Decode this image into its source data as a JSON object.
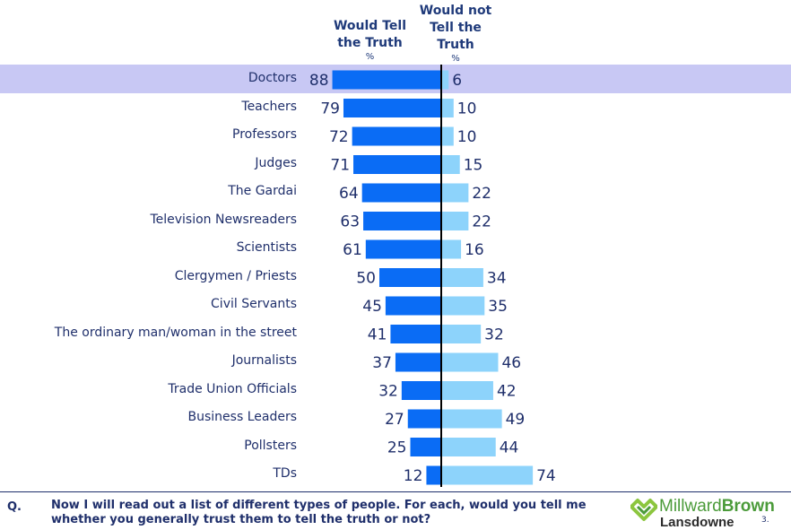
{
  "header": {
    "tell": "Would Tell the Truth",
    "not_tell": "Would not Tell the Truth",
    "tell_unit": "%",
    "not_tell_unit": "%"
  },
  "chart_data": {
    "type": "bar",
    "orientation": "horizontal-diverging",
    "categories": [
      "Doctors",
      "Teachers",
      "Professors",
      "Judges",
      "The Gardai",
      "Television Newsreaders",
      "Scientists",
      "Clergymen / Priests",
      "Civil Servants",
      "The ordinary man/woman in the street",
      "Journalists",
      "Trade Union Officials",
      "Business Leaders",
      "Pollsters",
      "TDs"
    ],
    "series": [
      {
        "name": "Would Tell the Truth",
        "values": [
          88,
          79,
          72,
          71,
          64,
          63,
          61,
          50,
          45,
          41,
          37,
          32,
          27,
          25,
          12
        ],
        "color": "#0a6cf5"
      },
      {
        "name": "Would not Tell the Truth",
        "values": [
          6,
          10,
          10,
          15,
          22,
          22,
          16,
          34,
          35,
          32,
          46,
          42,
          49,
          44,
          74
        ],
        "color": "#8dd3fb"
      }
    ],
    "highlight_category": "Doctors",
    "highlight_color": "#c8c8f4",
    "axis_color": "#000000"
  },
  "footer": {
    "q_label": "Q.",
    "question": "Now I will read out a list of different types of people. For each, would you tell me whether you generally trust them to tell the truth or not?",
    "logo_name_1": "Millward",
    "logo_name_2": "Brown",
    "logo_sub": "Lansdowne",
    "page_number": "3."
  }
}
